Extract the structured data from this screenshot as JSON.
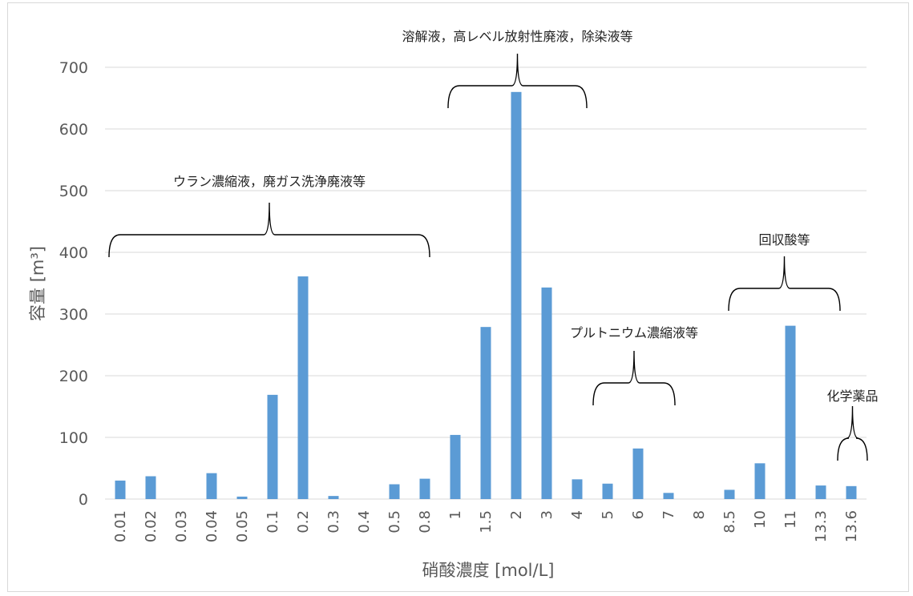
{
  "chart_data": {
    "type": "bar",
    "xlabel": "硝酸濃度 [mol/L]",
    "ylabel": "容量 [m³]",
    "ylim": [
      0,
      700
    ],
    "yticks": [
      0,
      100,
      200,
      300,
      400,
      500,
      600,
      700
    ],
    "grid": true,
    "legend": "none",
    "bar_color": "#5b9bd5",
    "categories": [
      "0.01",
      "0.02",
      "0.03",
      "0.04",
      "0.05",
      "0.1",
      "0.2",
      "0.3",
      "0.4",
      "0.5",
      "0.8",
      "1",
      "1.5",
      "2",
      "3",
      "4",
      "5",
      "6",
      "7",
      "8",
      "8.5",
      "10",
      "11",
      "13.3",
      "13.6"
    ],
    "values": [
      30,
      37,
      0,
      42,
      4,
      169,
      361,
      5,
      0,
      24,
      33,
      104,
      279,
      660,
      343,
      32,
      25,
      82,
      10,
      0,
      15,
      58,
      281,
      22,
      21
    ],
    "annotations": [
      {
        "text": "ウラン濃縮液，廃ガス洗浄廃液等",
        "from_category": "0.01",
        "to_category": "0.8"
      },
      {
        "text": "溶解液，高レベル放射性廃液，除染液等",
        "from_category": "1",
        "to_category": "4"
      },
      {
        "text": "プルトニウム濃縮液等",
        "from_category": "5",
        "to_category": "7"
      },
      {
        "text": "回収酸等",
        "from_category": "8.5",
        "to_category": "13.3"
      },
      {
        "text": "化学薬品",
        "from_category": "13.6",
        "to_category": "13.6"
      }
    ]
  }
}
